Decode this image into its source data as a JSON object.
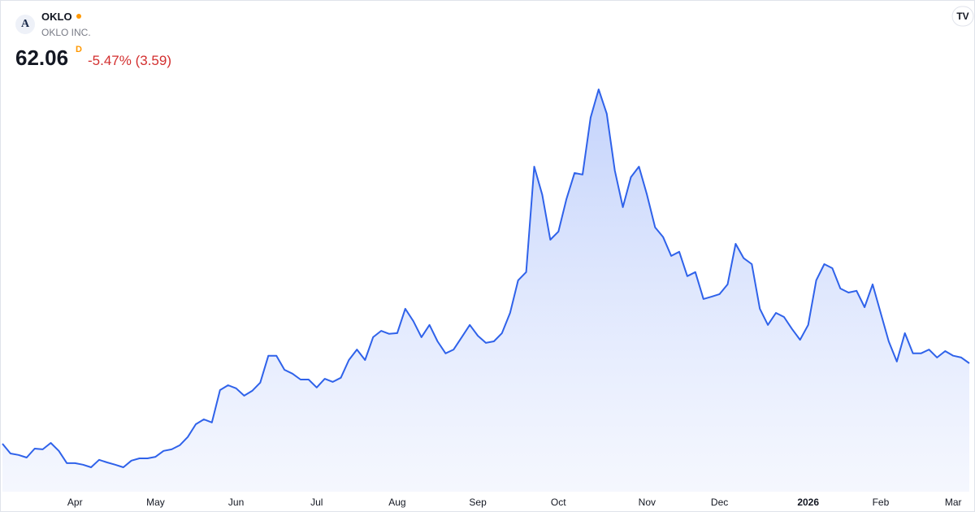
{
  "header": {
    "symbol": "OKLO",
    "name": "OKLO INC.",
    "price": 62.06,
    "interval": "D",
    "change": "-5.47% (3.59)"
  },
  "chart_data": {
    "type": "area",
    "color": "#2f62ea",
    "categories": [
      null,
      null,
      null,
      null,
      null,
      null,
      null,
      null,
      null,
      "Apr",
      null,
      null,
      null,
      null,
      null,
      null,
      null,
      null,
      null,
      "May",
      null,
      null,
      null,
      null,
      null,
      null,
      null,
      null,
      null,
      "Jun",
      null,
      null,
      null,
      null,
      null,
      null,
      null,
      null,
      null,
      "Jul",
      null,
      null,
      null,
      null,
      null,
      null,
      null,
      null,
      null,
      "Aug",
      null,
      null,
      null,
      null,
      null,
      null,
      null,
      null,
      null,
      "Sep",
      null,
      null,
      null,
      null,
      null,
      null,
      null,
      null,
      null,
      "Oct",
      null,
      null,
      null,
      null,
      null,
      null,
      null,
      null,
      null,
      null,
      "Nov",
      null,
      null,
      null,
      null,
      null,
      null,
      null,
      null,
      "Dec",
      null,
      null,
      null,
      null,
      null,
      null,
      null,
      null,
      null,
      null,
      "2026",
      null,
      null,
      null,
      null,
      null,
      null,
      null,
      null,
      "Feb",
      null,
      null,
      null,
      null,
      null,
      null,
      null,
      null,
      "Mar",
      null,
      null
    ],
    "values": [
      30.7,
      26.9,
      26.3,
      25.3,
      28.8,
      28.5,
      31.0,
      27.9,
      23.1,
      23.1,
      22.5,
      21.5,
      24.4,
      23.4,
      22.5,
      21.5,
      24.1,
      25.0,
      25.0,
      25.6,
      27.9,
      28.5,
      30.1,
      33.3,
      38.3,
      40.2,
      39.0,
      51.6,
      53.5,
      52.3,
      49.4,
      51.3,
      54.5,
      65.0,
      65.0,
      59.5,
      58.0,
      55.7,
      55.7,
      52.6,
      56.0,
      54.8,
      56.4,
      63.3,
      67.4,
      63.3,
      72.2,
      74.7,
      73.5,
      73.8,
      83.3,
      78.5,
      72.2,
      77.0,
      70.6,
      65.9,
      67.4,
      72.2,
      77.0,
      72.8,
      70.0,
      70.6,
      73.8,
      81.7,
      94.4,
      97.6,
      138.7,
      127.7,
      110.2,
      113.4,
      126.1,
      136.2,
      135.6,
      157.8,
      168.8,
      159.3,
      137.2,
      122.9,
      134.6,
      138.7,
      127.7,
      115.0,
      111.2,
      103.9,
      105.5,
      96.0,
      97.6,
      87.1,
      88.0,
      89.0,
      92.8,
      108.6,
      103.0,
      100.7,
      83.3,
      77.0,
      81.7,
      80.1,
      75.4,
      71.2,
      77.0,
      94.4,
      100.7,
      99.1,
      91.2,
      89.6,
      90.3,
      83.9,
      92.8,
      81.7,
      70.6,
      62.7,
      73.8,
      65.9,
      65.9,
      67.4,
      64.3,
      66.8,
      65.0,
      64.3,
      62.06
    ]
  }
}
